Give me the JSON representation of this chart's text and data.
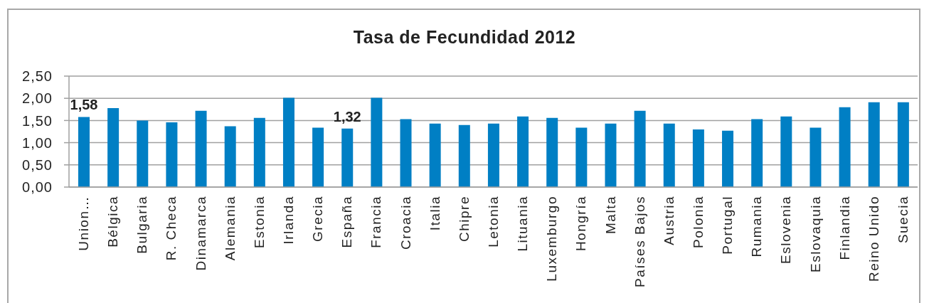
{
  "chart_data": {
    "type": "bar",
    "title": "Tasa de Fecundidad 2012",
    "categories": [
      "Union…",
      "Bélgica",
      "Bulgaria",
      "R. Checa",
      "Dinamarca",
      "Alemania",
      "Estonia",
      "Irlanda",
      "Grecia",
      "España",
      "Francia",
      "Croacia",
      "Italia",
      "Chipre",
      "Letonia",
      "Lituania",
      "Luxemburgo",
      "Hongría",
      "Malta",
      "Países Bajos",
      "Austria",
      "Polonia",
      "Portugal",
      "Rumania",
      "Eslovenia",
      "Eslovaquia",
      "Finlandia",
      "Reino Unido",
      "Suecia"
    ],
    "values": [
      1.58,
      1.78,
      1.5,
      1.46,
      1.72,
      1.37,
      1.56,
      2.01,
      1.34,
      1.32,
      2.01,
      1.53,
      1.43,
      1.4,
      1.43,
      1.59,
      1.56,
      1.34,
      1.43,
      1.72,
      1.43,
      1.3,
      1.27,
      1.53,
      1.59,
      1.34,
      1.8,
      1.91,
      1.91
    ],
    "value_labels": [
      "1,58",
      null,
      null,
      null,
      null,
      null,
      null,
      null,
      null,
      "1,32",
      null,
      null,
      null,
      null,
      null,
      null,
      null,
      null,
      null,
      null,
      null,
      null,
      null,
      null,
      null,
      null,
      null,
      null,
      null
    ],
    "color": "#007fc4",
    "ylim": [
      0,
      2.5
    ],
    "yticks": [
      {
        "value": 0,
        "label": "0,00"
      },
      {
        "value": 0.5,
        "label": "0,50"
      },
      {
        "value": 1,
        "label": "1,00"
      },
      {
        "value": 1.5,
        "label": "1,50"
      },
      {
        "value": 2,
        "label": "2,00"
      },
      {
        "value": 2.5,
        "label": "2,50"
      }
    ],
    "grid": "y"
  }
}
